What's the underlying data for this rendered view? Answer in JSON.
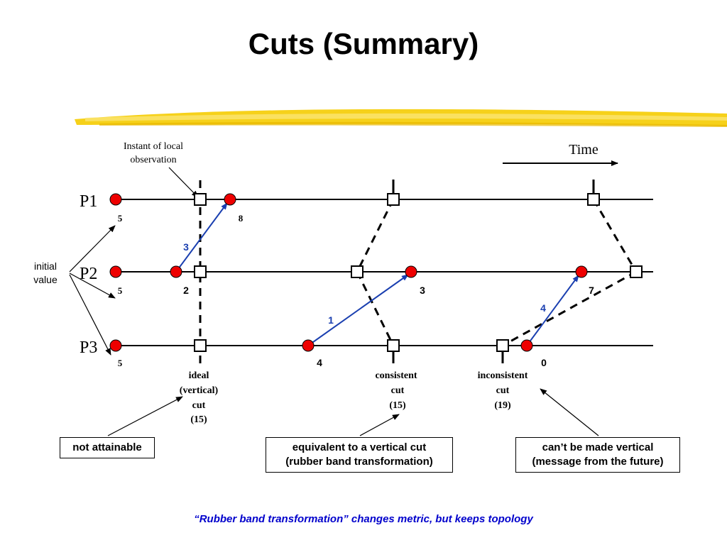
{
  "title": "Cuts (Summary)",
  "time_label": "Time",
  "observation_label": [
    "Instant of local",
    "observation"
  ],
  "initial_value_label": [
    "initial",
    "value"
  ],
  "processes": [
    "P1",
    "P2",
    "P3"
  ],
  "initial_values": [
    "5",
    "5",
    "5"
  ],
  "event_values": {
    "p1_after_receive": "8",
    "p2_after_send": "2",
    "p2_after_receive_1": "3",
    "p2_after_receive_4": "7",
    "p3_after_send_1": "4",
    "p3_after_send_4": "0"
  },
  "messages": [
    "3",
    "1",
    "4"
  ],
  "cuts": {
    "ideal": [
      "ideal",
      "(vertical)",
      "cut",
      "(15)"
    ],
    "consistent": [
      "consistent",
      "cut",
      "(15)"
    ],
    "inconsistent": [
      "inconsistent",
      "cut",
      "(19)"
    ]
  },
  "boxes": {
    "not_attainable": "not attainable",
    "equivalent": [
      "equivalent to a vertical cut",
      "(rubber band transformation)"
    ],
    "cannot_vertical": [
      "can’t be made vertical",
      "(message from the future)"
    ]
  },
  "footer": "“Rubber band transformation” changes metric, but keeps topology",
  "colors": {
    "event": "#ee0000",
    "message": "#1a3fb0",
    "highlight_stroke": "#f2c200",
    "footer": "#0000cc"
  }
}
